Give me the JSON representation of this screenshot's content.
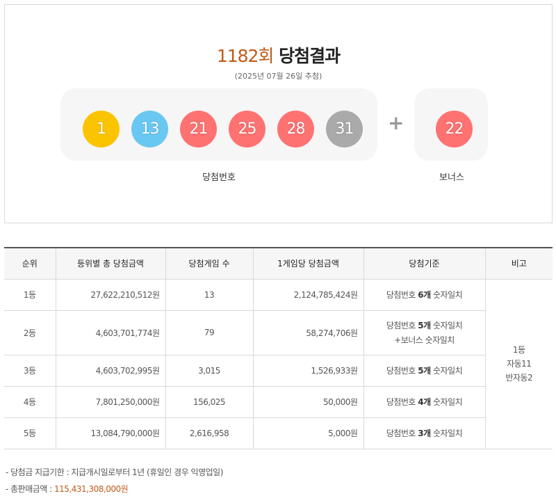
{
  "header": {
    "round": "1182회",
    "title_suffix": "당첨결과",
    "draw_date": "(2025년 07월 26일 추첨)"
  },
  "numbers": {
    "main": [
      {
        "value": "1",
        "color": "#fbc400"
      },
      {
        "value": "13",
        "color": "#69c8f2"
      },
      {
        "value": "21",
        "color": "#ff7272"
      },
      {
        "value": "25",
        "color": "#ff7272"
      },
      {
        "value": "28",
        "color": "#ff7272"
      },
      {
        "value": "31",
        "color": "#aaaaaa"
      }
    ],
    "bonus": {
      "value": "22",
      "color": "#ff7272"
    },
    "plus_sign": "+",
    "main_label": "당첨번호",
    "bonus_label": "보너스"
  },
  "table": {
    "headers": [
      "순위",
      "등위별 총 당첨금액",
      "당첨게임 수",
      "1게임당 당첨금액",
      "당첨기준",
      "비고"
    ],
    "rows": [
      {
        "rank": "1등",
        "total": "27,622,210,512원",
        "winners": "13",
        "per_game": "2,124,785,424원",
        "crit_pre": "당첨번호 ",
        "crit_bold": "6개",
        "crit_post": " 숫자일치",
        "crit_line2": ""
      },
      {
        "rank": "2등",
        "total": "4,603,701,774원",
        "winners": "79",
        "per_game": "58,274,706원",
        "crit_pre": "당첨번호 ",
        "crit_bold": "5개",
        "crit_post": " 숫자일치",
        "crit_line2": "+보너스 숫자일치"
      },
      {
        "rank": "3등",
        "total": "4,603,702,995원",
        "winners": "3,015",
        "per_game": "1,526,933원",
        "crit_pre": "당첨번호 ",
        "crit_bold": "5개",
        "crit_post": " 숫자일치",
        "crit_line2": ""
      },
      {
        "rank": "4등",
        "total": "7,801,250,000원",
        "winners": "156,025",
        "per_game": "50,000원",
        "crit_pre": "당첨번호 ",
        "crit_bold": "4개",
        "crit_post": " 숫자일치",
        "crit_line2": ""
      },
      {
        "rank": "5등",
        "total": "13,084,790,000원",
        "winners": "2,616,958",
        "per_game": "5,000원",
        "crit_pre": "당첨번호 ",
        "crit_bold": "3개",
        "crit_post": " 숫자일치",
        "crit_line2": ""
      }
    ],
    "note": {
      "line1": "1등",
      "line2": "자동11",
      "line3": "반자동2"
    }
  },
  "footer": {
    "payment_deadline": "- 당첨금 지급기한 : 지급개시일로부터 1년 (휴일인 경우 익영업일)",
    "total_sales_label": "- 총판매금액 : ",
    "total_sales_value": "115,431,308,000원"
  }
}
